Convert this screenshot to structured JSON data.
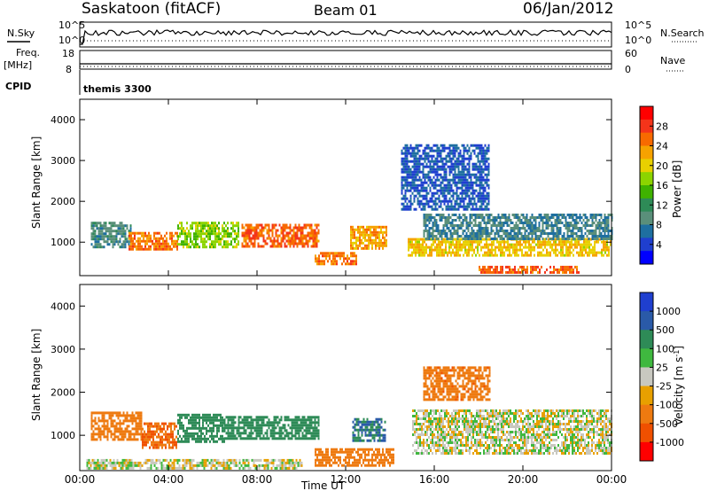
{
  "header": {
    "station": "Saskatoon (fitACF)",
    "beam": "Beam 01",
    "date": "06/Jan/2012"
  },
  "status_panels": {
    "nsky_label": "N.Sky",
    "nsky_ticks": [
      "10^5",
      "10^0"
    ],
    "nsearch_label": "N.Search",
    "nsearch_ticks": [
      "10^5",
      "10^0"
    ],
    "freq_label_1": "Freq.",
    "freq_label_2": "[MHz]",
    "freq_ticks": [
      "18",
      "8"
    ],
    "nave_label": "Nave",
    "nave_ticks": [
      "60",
      "0"
    ],
    "cpid_label": "CPID",
    "cpid_value": "themis 3300"
  },
  "power_colorbar": {
    "title": "Power [dB]",
    "ticks": [
      "28",
      "24",
      "20",
      "16",
      "12",
      "8",
      "4"
    ],
    "colors": [
      "#ff0000",
      "#f4341a",
      "#f86a00",
      "#f6a200",
      "#e8d000",
      "#8cd400",
      "#3fb200",
      "#2e8b57",
      "#5a8f7a",
      "#1e6fa0",
      "#1f3fcf",
      "#0000ff"
    ]
  },
  "velocity_colorbar": {
    "title": "Velocity [m s",
    "title_exp": "-1",
    "title_end": "]",
    "ticks": [
      "1000",
      "500",
      "100",
      "25",
      "-25",
      "-100",
      "-500",
      "-1000"
    ],
    "colors": [
      "#1f3fcf",
      "#2a5aa8",
      "#2e8b57",
      "#3fb83f",
      "#c8c8c0",
      "#e8a000",
      "#ee7a10",
      "#f05000",
      "#ff0000"
    ]
  },
  "chart_data": [
    {
      "type": "heatmap",
      "title": "Power",
      "xlabel": "",
      "ylabel": "Slant Range [km]",
      "xlim": [
        0,
        24
      ],
      "ylim": [
        180,
        4500
      ],
      "y_ticks": [
        "4000",
        "3000",
        "2000",
        "1000"
      ],
      "y_tick_values": [
        4000,
        3000,
        2000,
        1000
      ],
      "x_ticks": [
        "00:00",
        "04:00",
        "08:00",
        "12:00",
        "16:00",
        "20:00",
        "00:00"
      ],
      "x_tick_values": [
        0,
        4,
        8,
        12,
        16,
        20,
        24
      ],
      "features": [
        {
          "t": [
            0.5,
            2.3
          ],
          "r": [
            900,
            1500
          ],
          "value": 10
        },
        {
          "t": [
            2.2,
            4.4
          ],
          "r": [
            850,
            1250
          ],
          "value": 26
        },
        {
          "t": [
            4.4,
            7.2
          ],
          "r": [
            850,
            1500
          ],
          "value": 18
        },
        {
          "t": [
            7.3,
            10.8
          ],
          "r": [
            900,
            1450
          ],
          "value": 27
        },
        {
          "t": [
            10.6,
            12.5
          ],
          "r": [
            480,
            760
          ],
          "value": 26
        },
        {
          "t": [
            12.2,
            13.8
          ],
          "r": [
            850,
            1400
          ],
          "value": 24
        },
        {
          "t": [
            14.8,
            24.0
          ],
          "r": [
            700,
            1100
          ],
          "value": 22
        },
        {
          "t": [
            15.5,
            24.0
          ],
          "r": [
            1100,
            1700
          ],
          "value": 9
        },
        {
          "t": [
            18.0,
            22.5
          ],
          "r": [
            260,
            420
          ],
          "value": 27
        },
        {
          "t": [
            14.5,
            18.5
          ],
          "r": [
            1800,
            3400
          ],
          "value": 6
        }
      ]
    },
    {
      "type": "heatmap",
      "title": "Velocity",
      "xlabel": "Time UT",
      "ylabel": "Slant Range [km]",
      "xlim": [
        0,
        24
      ],
      "ylim": [
        180,
        4500
      ],
      "y_ticks": [
        "4000",
        "3000",
        "2000",
        "1000"
      ],
      "y_tick_values": [
        4000,
        3000,
        2000,
        1000
      ],
      "x_ticks": [
        "00:00",
        "04:00",
        "08:00",
        "12:00",
        "16:00",
        "20:00",
        "00:00"
      ],
      "x_tick_values": [
        0,
        4,
        8,
        12,
        16,
        20,
        24
      ],
      "features": [
        {
          "t": [
            0.5,
            2.8
          ],
          "r": [
            900,
            1550
          ],
          "value": -150
        },
        {
          "t": [
            2.8,
            4.4
          ],
          "r": [
            700,
            1300
          ],
          "value": -300
        },
        {
          "t": [
            4.4,
            6.5
          ],
          "r": [
            850,
            1500
          ],
          "value": 150
        },
        {
          "t": [
            6.5,
            10.8
          ],
          "r": [
            900,
            1450
          ],
          "value": 200
        },
        {
          "t": [
            10.6,
            14.2
          ],
          "r": [
            300,
            700
          ],
          "value": -200
        },
        {
          "t": [
            12.3,
            13.8
          ],
          "r": [
            900,
            1400
          ],
          "value": 300
        },
        {
          "t": [
            15.0,
            24.0
          ],
          "r": [
            600,
            1600
          ],
          "value": 0
        },
        {
          "t": [
            15.5,
            18.5
          ],
          "r": [
            1800,
            2600
          ],
          "value": -250
        },
        {
          "t": [
            0.3,
            10.0
          ],
          "r": [
            250,
            450
          ],
          "value": 0
        }
      ]
    }
  ]
}
